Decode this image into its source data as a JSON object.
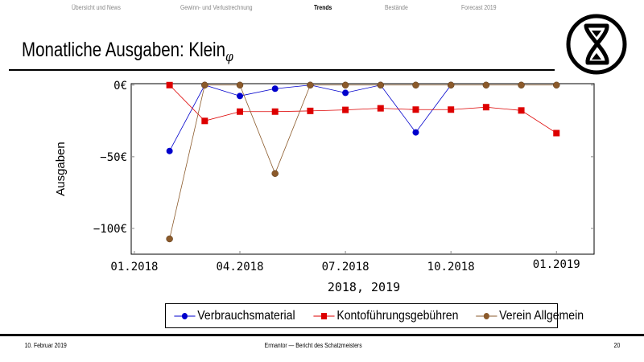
{
  "nav": [
    {
      "label": "Übersicht und News",
      "active": false
    },
    {
      "label": "Gewinn- und Verlustrechnung",
      "active": false
    },
    {
      "label": "Trends",
      "active": true
    },
    {
      "label": "Bestände",
      "active": false
    },
    {
      "label": "Forecast 2019",
      "active": false
    }
  ],
  "title": {
    "main": "Monatliche Ausgaben: Klein",
    "subscript": "φ"
  },
  "logo": {
    "icon": "hourglass-circle-logo"
  },
  "footer": {
    "date": "10. Februar 2019",
    "center": "Ermantor — Bericht des Schatzmeisters",
    "page": "20"
  },
  "chart_data": {
    "type": "line",
    "xlabel": "2018, 2019",
    "ylabel": "Ausgaben",
    "x": [
      "02.2018",
      "03.2018",
      "04.2018",
      "05.2018",
      "06.2018",
      "07.2018",
      "08.2018",
      "09.2018",
      "10.2018",
      "11.2018",
      "12.2018",
      "01.2019"
    ],
    "x_ticks": [
      "01.2018",
      "04.2018",
      "07.2018",
      "10.2018",
      "01.2019"
    ],
    "y_ticks": [
      "0€",
      "−50€",
      "−100€"
    ],
    "y_tick_values": [
      0,
      -50,
      -100
    ],
    "ylim": [
      -118,
      1
    ],
    "xlim": [
      "01.2018",
      "02.2019"
    ],
    "grid": false,
    "legend_position": "bottom",
    "series": [
      {
        "name": "Verbrauchsmaterial",
        "color": "#0000cc",
        "marker": "circle",
        "values": [
          -46,
          0,
          -7.6,
          -2.5,
          0,
          -5.4,
          0,
          -33,
          0,
          null,
          null,
          null
        ]
      },
      {
        "name": "Kontoführungsgebühren",
        "color": "#dd0000",
        "marker": "square",
        "values": [
          0,
          -25,
          -18.5,
          -18.5,
          -18,
          -17.3,
          -16.2,
          -17.1,
          -17.1,
          -15.4,
          -17.7,
          -33.5
        ]
      },
      {
        "name": "Verein Allgemein",
        "color": "#8b5a2b",
        "marker": "circle",
        "values": [
          -107.3,
          0,
          0,
          -61.7,
          0,
          0,
          0,
          0,
          0,
          0,
          0,
          0
        ]
      }
    ]
  }
}
